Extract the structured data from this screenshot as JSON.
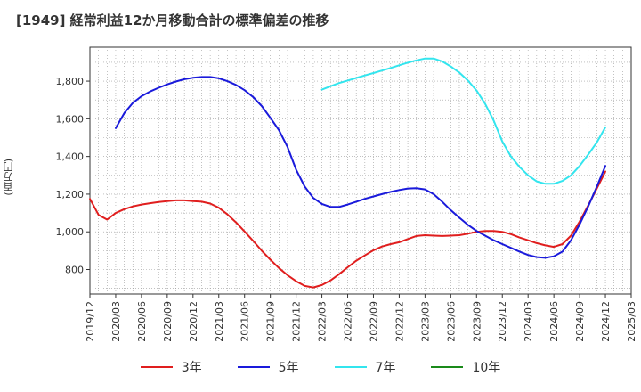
{
  "title": "[1949]  経常利益12か月移動合計の標準偏差の推移",
  "y_unit": "(百万円)",
  "colors": {
    "3年": "#e01e1e",
    "5年": "#1a1adb",
    "7年": "#33e5ee",
    "10年": "#1a8a1a"
  },
  "chart_data": {
    "type": "line",
    "xlabel": "",
    "ylabel": "(百万円)",
    "xlim": [
      "2019/12",
      "2025/03"
    ],
    "ylim": [
      670,
      1980
    ],
    "x_ticks": [
      "2019/12",
      "2020/03",
      "2020/06",
      "2020/09",
      "2020/12",
      "2021/03",
      "2021/06",
      "2021/09",
      "2021/12",
      "2022/03",
      "2022/06",
      "2022/09",
      "2022/12",
      "2023/03",
      "2023/06",
      "2023/09",
      "2023/12",
      "2024/03",
      "2024/06",
      "2024/09",
      "2024/12",
      "2025/03"
    ],
    "y_ticks": [
      800,
      1000,
      1200,
      1400,
      1600,
      1800
    ],
    "y_tick_labels": [
      "800",
      "1,000",
      "1,200",
      "1,400",
      "1,600",
      "1,800"
    ],
    "grid": true,
    "legend_position": "bottom",
    "series": [
      {
        "name": "3年",
        "x": [
          "2019/12",
          "2020/01",
          "2020/02",
          "2020/03",
          "2020/04",
          "2020/05",
          "2020/06",
          "2020/07",
          "2020/08",
          "2020/09",
          "2020/10",
          "2020/11",
          "2020/12",
          "2021/01",
          "2021/02",
          "2021/03",
          "2021/04",
          "2021/05",
          "2021/06",
          "2021/07",
          "2021/08",
          "2021/09",
          "2021/10",
          "2021/11",
          "2021/12",
          "2022/01",
          "2022/02",
          "2022/03",
          "2022/04",
          "2022/05",
          "2022/06",
          "2022/07",
          "2022/08",
          "2022/09",
          "2022/10",
          "2022/11",
          "2022/12",
          "2023/01",
          "2023/02",
          "2023/03",
          "2023/04",
          "2023/05",
          "2023/06",
          "2023/07",
          "2023/08",
          "2023/09",
          "2023/10",
          "2023/11",
          "2023/12",
          "2024/01",
          "2024/02",
          "2024/03",
          "2024/04",
          "2024/05",
          "2024/06",
          "2024/07",
          "2024/08",
          "2024/09",
          "2024/10",
          "2024/11",
          "2024/12"
        ],
        "values": [
          1175,
          1090,
          1065,
          1100,
          1120,
          1135,
          1145,
          1152,
          1158,
          1163,
          1167,
          1167,
          1163,
          1160,
          1150,
          1128,
          1093,
          1050,
          1002,
          952,
          900,
          852,
          808,
          770,
          738,
          713,
          705,
          718,
          742,
          775,
          812,
          847,
          875,
          902,
          922,
          935,
          945,
          962,
          978,
          982,
          980,
          978,
          980,
          982,
          990,
          1000,
          1005,
          1005,
          1000,
          988,
          970,
          955,
          940,
          928,
          920,
          935,
          980,
          1055,
          1140,
          1230,
          1320
        ]
      },
      {
        "name": "5年",
        "x": [
          "2020/03",
          "2020/04",
          "2020/05",
          "2020/06",
          "2020/07",
          "2020/08",
          "2020/09",
          "2020/10",
          "2020/11",
          "2020/12",
          "2021/01",
          "2021/02",
          "2021/03",
          "2021/04",
          "2021/05",
          "2021/06",
          "2021/07",
          "2021/08",
          "2021/09",
          "2021/10",
          "2021/11",
          "2021/12",
          "2022/01",
          "2022/02",
          "2022/03",
          "2022/04",
          "2022/05",
          "2022/06",
          "2022/07",
          "2022/08",
          "2022/09",
          "2022/10",
          "2022/11",
          "2022/12",
          "2023/01",
          "2023/02",
          "2023/03",
          "2023/04",
          "2023/05",
          "2023/06",
          "2023/07",
          "2023/08",
          "2023/09",
          "2023/10",
          "2023/11",
          "2023/12",
          "2024/01",
          "2024/02",
          "2024/03",
          "2024/04",
          "2024/05",
          "2024/06",
          "2024/07",
          "2024/08",
          "2024/09",
          "2024/10",
          "2024/11",
          "2024/12"
        ],
        "values": [
          1550,
          1630,
          1685,
          1720,
          1745,
          1765,
          1783,
          1798,
          1810,
          1818,
          1822,
          1822,
          1815,
          1800,
          1780,
          1752,
          1715,
          1668,
          1605,
          1540,
          1450,
          1330,
          1240,
          1180,
          1148,
          1132,
          1132,
          1145,
          1160,
          1175,
          1188,
          1200,
          1212,
          1222,
          1230,
          1232,
          1225,
          1200,
          1160,
          1115,
          1075,
          1037,
          1005,
          980,
          955,
          935,
          915,
          895,
          877,
          866,
          862,
          870,
          895,
          955,
          1040,
          1135,
          1240,
          1350
        ]
      },
      {
        "name": "7年",
        "x": [
          "2022/03",
          "2022/04",
          "2022/05",
          "2022/06",
          "2022/07",
          "2022/08",
          "2022/09",
          "2022/10",
          "2022/11",
          "2022/12",
          "2023/01",
          "2023/02",
          "2023/03",
          "2023/04",
          "2023/05",
          "2023/06",
          "2023/07",
          "2023/08",
          "2023/09",
          "2023/10",
          "2023/11",
          "2023/12",
          "2024/01",
          "2024/02",
          "2024/03",
          "2024/04",
          "2024/05",
          "2024/06",
          "2024/07",
          "2024/08",
          "2024/09",
          "2024/10",
          "2024/11",
          "2024/12"
        ],
        "values": [
          1755,
          1773,
          1790,
          1803,
          1817,
          1830,
          1843,
          1856,
          1870,
          1884,
          1898,
          1910,
          1920,
          1920,
          1905,
          1878,
          1845,
          1803,
          1750,
          1680,
          1590,
          1480,
          1400,
          1345,
          1300,
          1268,
          1255,
          1255,
          1270,
          1300,
          1350,
          1410,
          1475,
          1555
        ]
      },
      {
        "name": "10年",
        "x": [],
        "values": []
      }
    ]
  }
}
